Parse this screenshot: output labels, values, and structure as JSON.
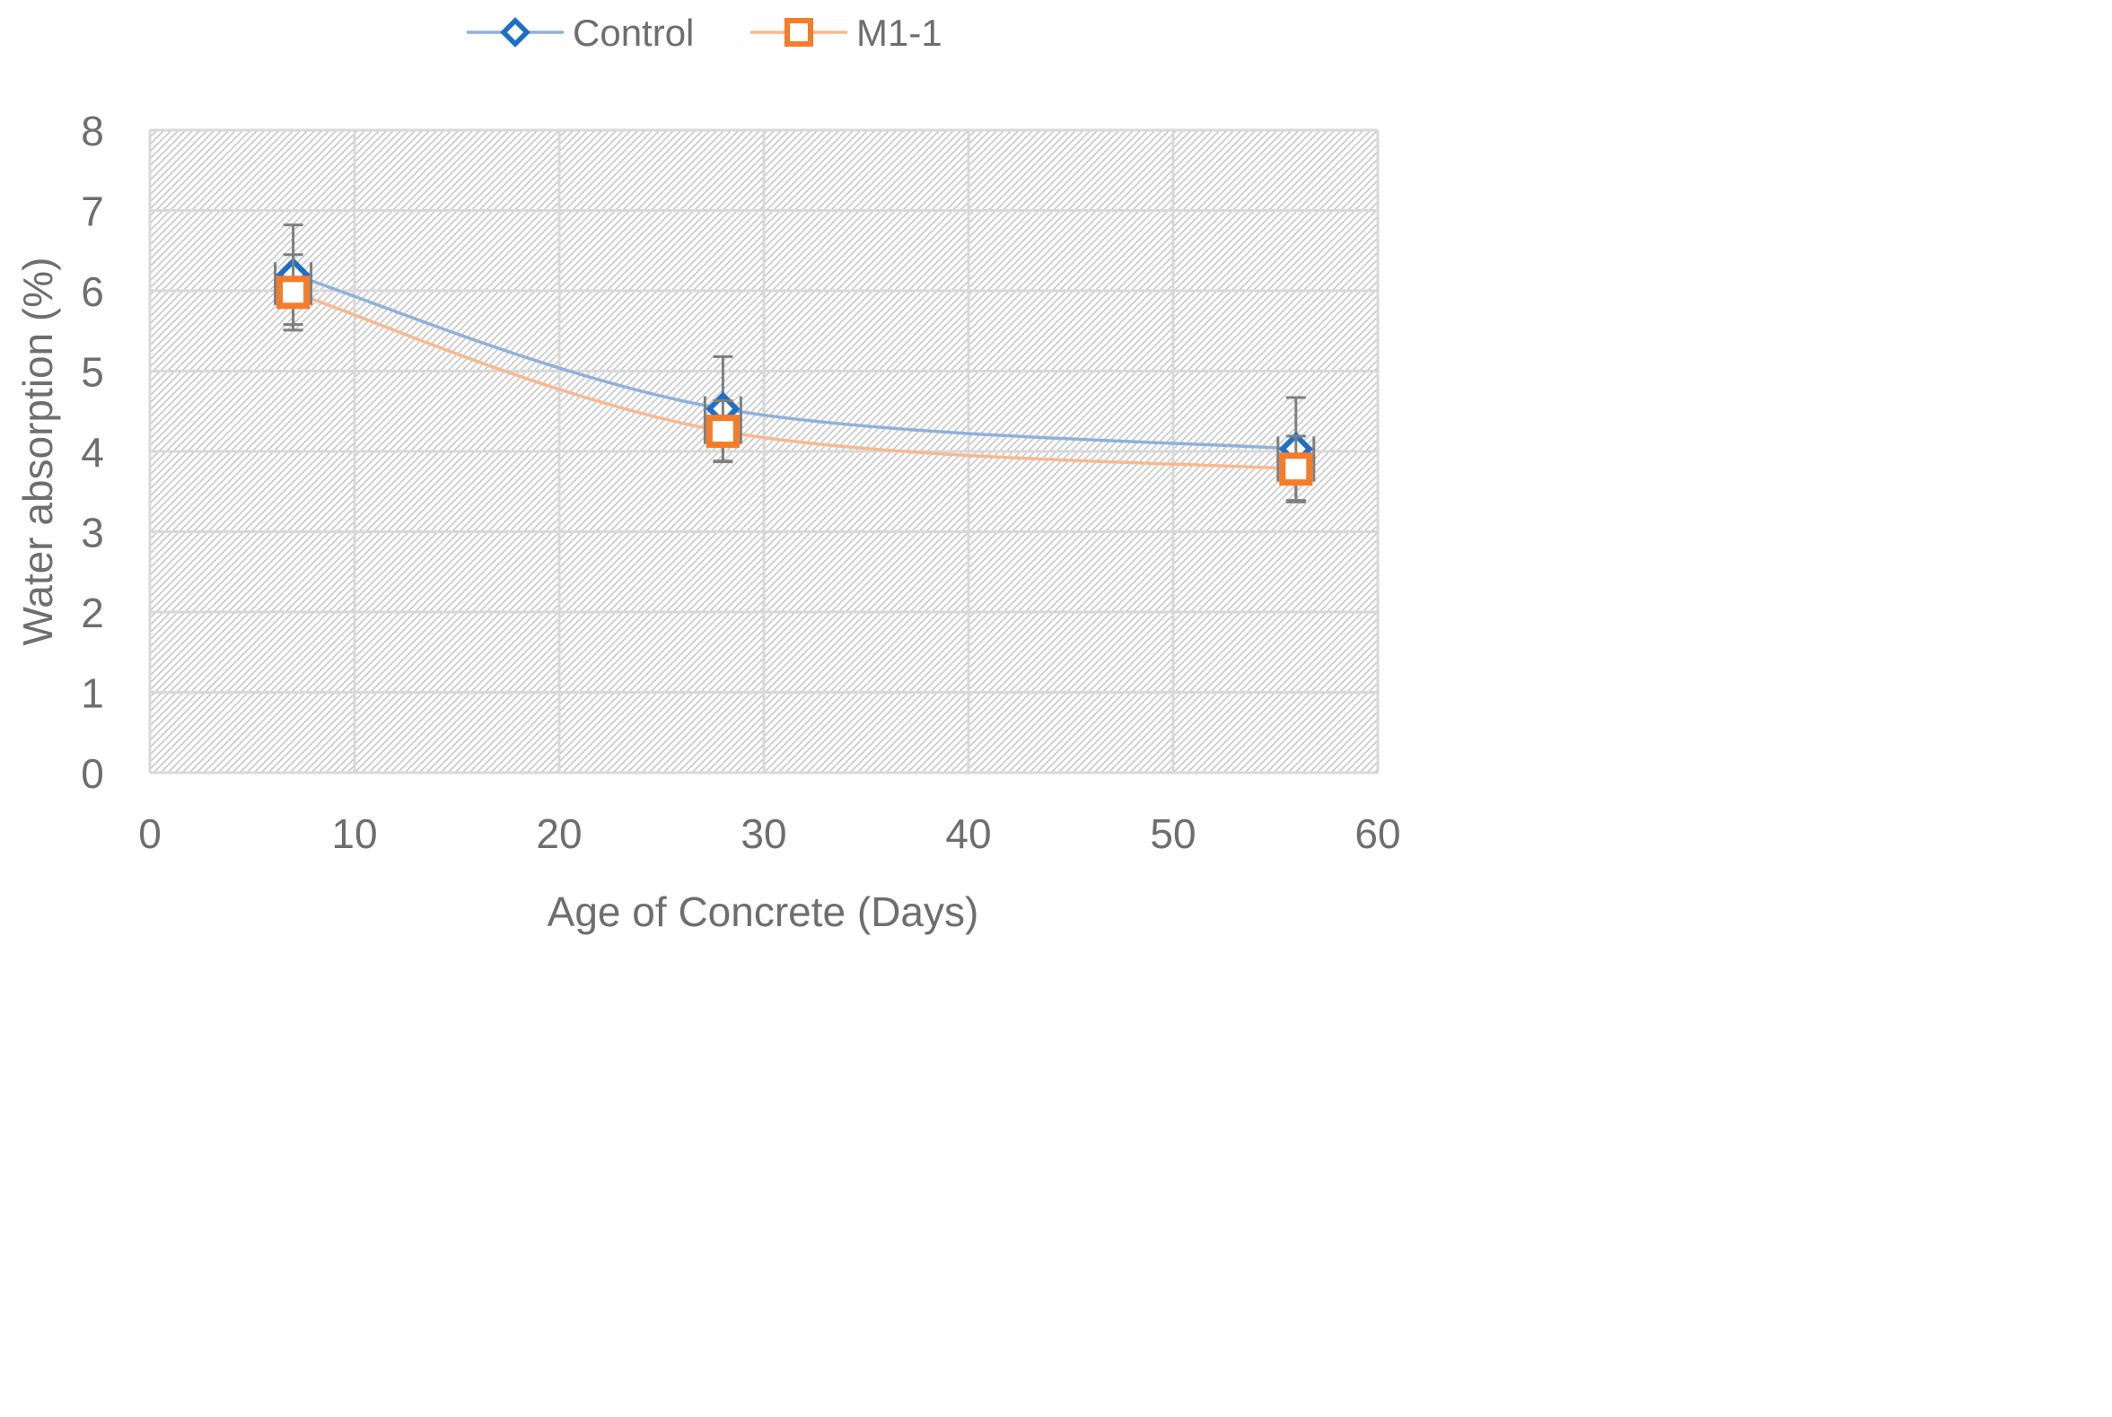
{
  "chart_data": {
    "type": "line",
    "xlabel": "Age of Concrete (Days)",
    "ylabel": "Water absorption (%)",
    "xlim": [
      0,
      60
    ],
    "ylim": [
      0,
      8
    ],
    "x_ticks": [
      "0",
      "10",
      "20",
      "30",
      "40",
      "50",
      "60"
    ],
    "y_ticks": [
      "0",
      "1",
      "2",
      "3",
      "4",
      "5",
      "6",
      "7",
      "8"
    ],
    "grid": true,
    "plot_background": "hatched",
    "legend_position": "top",
    "smoothed": true,
    "x": [
      7,
      28,
      56
    ],
    "series": [
      {
        "name": "Control",
        "marker": "diamond",
        "line_color": "#8fb1dc",
        "marker_color": "#1f6fc6",
        "values": [
          6.2,
          4.53,
          4.03
        ],
        "error": [
          0.62,
          0.65,
          0.64
        ]
      },
      {
        "name": "M1-1",
        "marker": "square",
        "line_color": "#f8b98f",
        "marker_color": "#f57c28",
        "values": [
          5.98,
          4.25,
          3.78
        ],
        "error": [
          0.47,
          0.38,
          0.41
        ]
      }
    ]
  }
}
